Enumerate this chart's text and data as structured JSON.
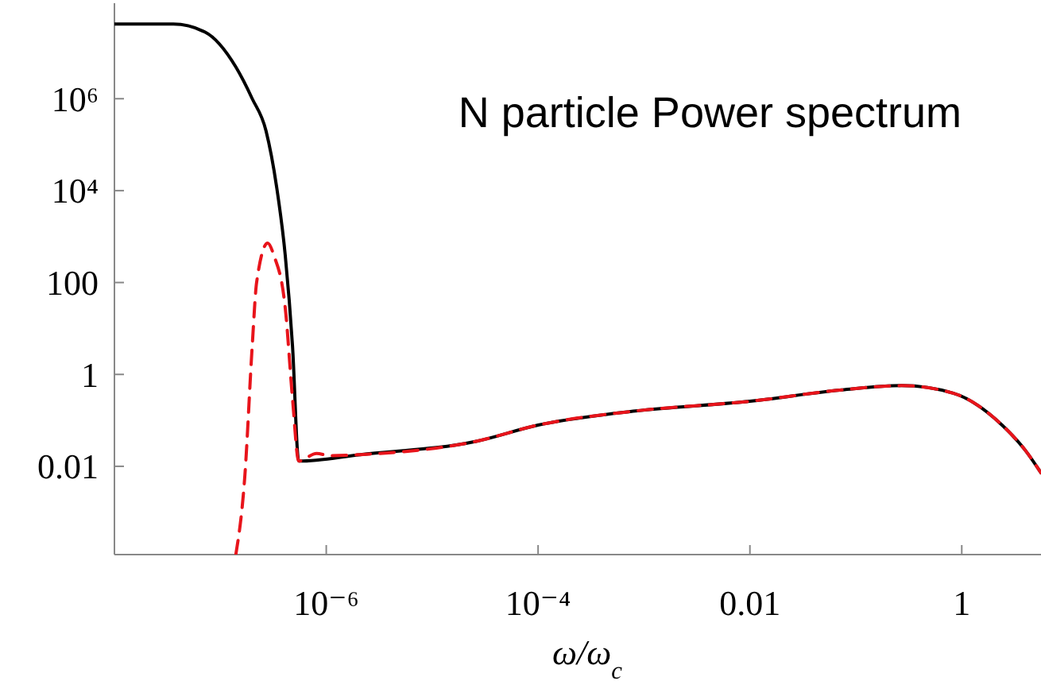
{
  "chart_data": {
    "type": "line",
    "title": "N particle Power spectrum",
    "xlabel": "ω/ω$_{c}$",
    "log": "xy",
    "xlim": [
      1e-08,
      5.6
    ],
    "ylim": [
      0.00012,
      120000000.0
    ],
    "xticks": [
      {
        "value": 1e-06,
        "label": "10⁻⁶"
      },
      {
        "value": 0.0001,
        "label": "10⁻⁴"
      },
      0.01,
      1
    ],
    "yticks": [
      0.01,
      1,
      100,
      {
        "value": 10000.0,
        "label": "10⁴"
      },
      {
        "value": 1000000.0,
        "label": "10⁶"
      }
    ],
    "grid": false,
    "marker": "none",
    "series": [
      {
        "color": "#000000",
        "line_style": "solid",
        "x": [
          1e-08,
          3.6e-08,
          7.2e-08,
          1.4e-07,
          2e-07,
          2.7e-07,
          3.4e-07,
          4.1e-07,
          4.8e-07,
          5.5e-07,
          2.1e-06,
          2.6e-05,
          0.0001,
          0.00083,
          0.01,
          0.074,
          0.27,
          0.83,
          2.4,
          4.0,
          5.6
        ],
        "values": [
          42000000.0,
          42000000.0,
          28000000.0,
          4900000.0,
          1000000.0,
          200000.0,
          12000.0,
          390,
          4.2,
          0.013,
          0.018,
          0.035,
          0.079,
          0.16,
          0.26,
          0.46,
          0.57,
          0.39,
          0.079,
          0.022,
          0.0072
        ]
      },
      {
        "color": "#e8141b",
        "line_style": "dashed",
        "x": [
          1.4e-07,
          1.7e-07,
          2e-07,
          2.2e-07,
          2.8e-07,
          3.2e-07,
          4.1e-07,
          4.8e-07,
          5.5e-07,
          8.1e-07,
          1.1e-06,
          2.1e-06,
          2.6e-05,
          0.0001,
          0.00083,
          0.01,
          0.074,
          0.27,
          0.83,
          2.4,
          4.0,
          5.6
        ],
        "values": [
          0.00012,
          0.0058,
          4.2,
          100,
          720,
          390,
          28,
          0.3,
          0.013,
          0.019,
          0.017,
          0.018,
          0.035,
          0.079,
          0.16,
          0.26,
          0.46,
          0.57,
          0.39,
          0.079,
          0.022,
          0.0072
        ]
      }
    ]
  }
}
